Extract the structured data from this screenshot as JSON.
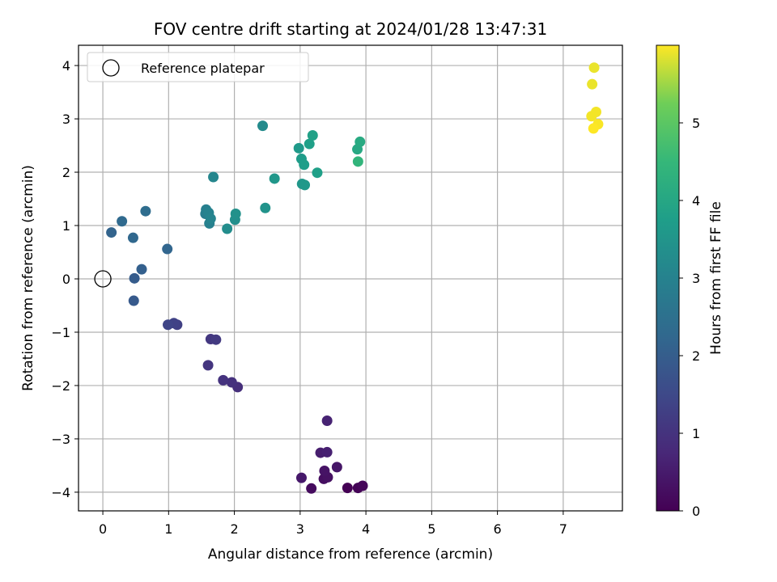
{
  "chart_data": {
    "type": "scatter",
    "title": "FOV centre drift starting at 2024/01/28 13:47:31",
    "xlabel": "Angular distance from reference (arcmin)",
    "ylabel": "Rotation from reference (arcmin)",
    "xlim": [
      -0.37,
      7.9
    ],
    "ylim": [
      -4.35,
      4.38
    ],
    "xticks": [
      "0",
      "1",
      "2",
      "3",
      "4",
      "5",
      "6",
      "7"
    ],
    "yticks": [
      "−4",
      "−3",
      "−2",
      "−1",
      "0",
      "1",
      "2",
      "3",
      "4"
    ],
    "grid": true,
    "legend": {
      "position": "top-left",
      "entries": [
        "Reference platepar"
      ]
    },
    "colorbar": {
      "label": "Hours from first FF file",
      "range": [
        0,
        6.0
      ],
      "ticks": [
        "0",
        "1",
        "2",
        "3",
        "4",
        "5"
      ],
      "colormap": "viridis"
    },
    "reference_point": {
      "x": 0,
      "y": 0,
      "label": "Reference platepar"
    },
    "points": [
      {
        "x": 3.72,
        "y": -3.92,
        "t": 0.0
      },
      {
        "x": 3.88,
        "y": -3.92,
        "t": 0.05
      },
      {
        "x": 3.95,
        "y": -3.88,
        "t": 0.1
      },
      {
        "x": 3.17,
        "y": -3.93,
        "t": 0.2
      },
      {
        "x": 3.36,
        "y": -3.75,
        "t": 0.25
      },
      {
        "x": 3.42,
        "y": -3.72,
        "t": 0.3
      },
      {
        "x": 3.37,
        "y": -3.6,
        "t": 0.35
      },
      {
        "x": 3.56,
        "y": -3.53,
        "t": 0.4
      },
      {
        "x": 3.02,
        "y": -3.73,
        "t": 0.45
      },
      {
        "x": 3.31,
        "y": -3.26,
        "t": 0.55
      },
      {
        "x": 3.41,
        "y": -3.25,
        "t": 0.6
      },
      {
        "x": 3.41,
        "y": -2.66,
        "t": 0.65
      },
      {
        "x": 2.05,
        "y": -2.03,
        "t": 0.9
      },
      {
        "x": 1.96,
        "y": -1.94,
        "t": 0.95
      },
      {
        "x": 1.83,
        "y": -1.9,
        "t": 1.0
      },
      {
        "x": 1.6,
        "y": -1.62,
        "t": 1.05
      },
      {
        "x": 1.64,
        "y": -1.13,
        "t": 1.1
      },
      {
        "x": 1.72,
        "y": -1.14,
        "t": 1.15
      },
      {
        "x": 1.13,
        "y": -0.86,
        "t": 1.3
      },
      {
        "x": 1.08,
        "y": -0.83,
        "t": 1.35
      },
      {
        "x": 0.99,
        "y": -0.86,
        "t": 1.4
      },
      {
        "x": 0.47,
        "y": -0.41,
        "t": 1.9
      },
      {
        "x": 0.48,
        "y": 0.01,
        "t": 1.95
      },
      {
        "x": 0.59,
        "y": 0.18,
        "t": 2.05
      },
      {
        "x": 0.98,
        "y": 0.56,
        "t": 2.2
      },
      {
        "x": 0.46,
        "y": 0.77,
        "t": 2.25
      },
      {
        "x": 0.13,
        "y": 0.87,
        "t": 2.15
      },
      {
        "x": 0.29,
        "y": 1.08,
        "t": 2.3
      },
      {
        "x": 0.65,
        "y": 1.27,
        "t": 2.4
      },
      {
        "x": 1.56,
        "y": 1.22,
        "t": 2.85
      },
      {
        "x": 1.57,
        "y": 1.3,
        "t": 2.9
      },
      {
        "x": 1.62,
        "y": 1.04,
        "t": 2.95
      },
      {
        "x": 1.61,
        "y": 1.24,
        "t": 3.0
      },
      {
        "x": 1.64,
        "y": 1.13,
        "t": 3.05
      },
      {
        "x": 1.68,
        "y": 1.91,
        "t": 3.1
      },
      {
        "x": 1.89,
        "y": 0.94,
        "t": 3.3
      },
      {
        "x": 2.01,
        "y": 1.11,
        "t": 3.35
      },
      {
        "x": 2.02,
        "y": 1.22,
        "t": 3.4
      },
      {
        "x": 2.43,
        "y": 2.87,
        "t": 3.25
      },
      {
        "x": 2.47,
        "y": 1.33,
        "t": 3.45
      },
      {
        "x": 2.61,
        "y": 1.88,
        "t": 3.55
      },
      {
        "x": 2.98,
        "y": 2.45,
        "t": 3.65
      },
      {
        "x": 3.02,
        "y": 2.25,
        "t": 3.7
      },
      {
        "x": 3.03,
        "y": 1.78,
        "t": 3.55
      },
      {
        "x": 3.06,
        "y": 2.14,
        "t": 3.75
      },
      {
        "x": 3.07,
        "y": 1.76,
        "t": 3.6
      },
      {
        "x": 3.14,
        "y": 2.53,
        "t": 3.8
      },
      {
        "x": 3.19,
        "y": 2.69,
        "t": 3.85
      },
      {
        "x": 3.26,
        "y": 1.99,
        "t": 3.8
      },
      {
        "x": 3.87,
        "y": 2.43,
        "t": 4.05
      },
      {
        "x": 3.91,
        "y": 2.57,
        "t": 4.1
      },
      {
        "x": 3.88,
        "y": 2.2,
        "t": 4.4
      },
      {
        "x": 7.47,
        "y": 3.96,
        "t": 5.9
      },
      {
        "x": 7.44,
        "y": 3.65,
        "t": 5.9
      },
      {
        "x": 7.5,
        "y": 3.13,
        "t": 5.95
      },
      {
        "x": 7.43,
        "y": 3.05,
        "t": 5.95
      },
      {
        "x": 7.53,
        "y": 2.9,
        "t": 5.98
      },
      {
        "x": 7.46,
        "y": 2.82,
        "t": 6.0
      }
    ]
  }
}
